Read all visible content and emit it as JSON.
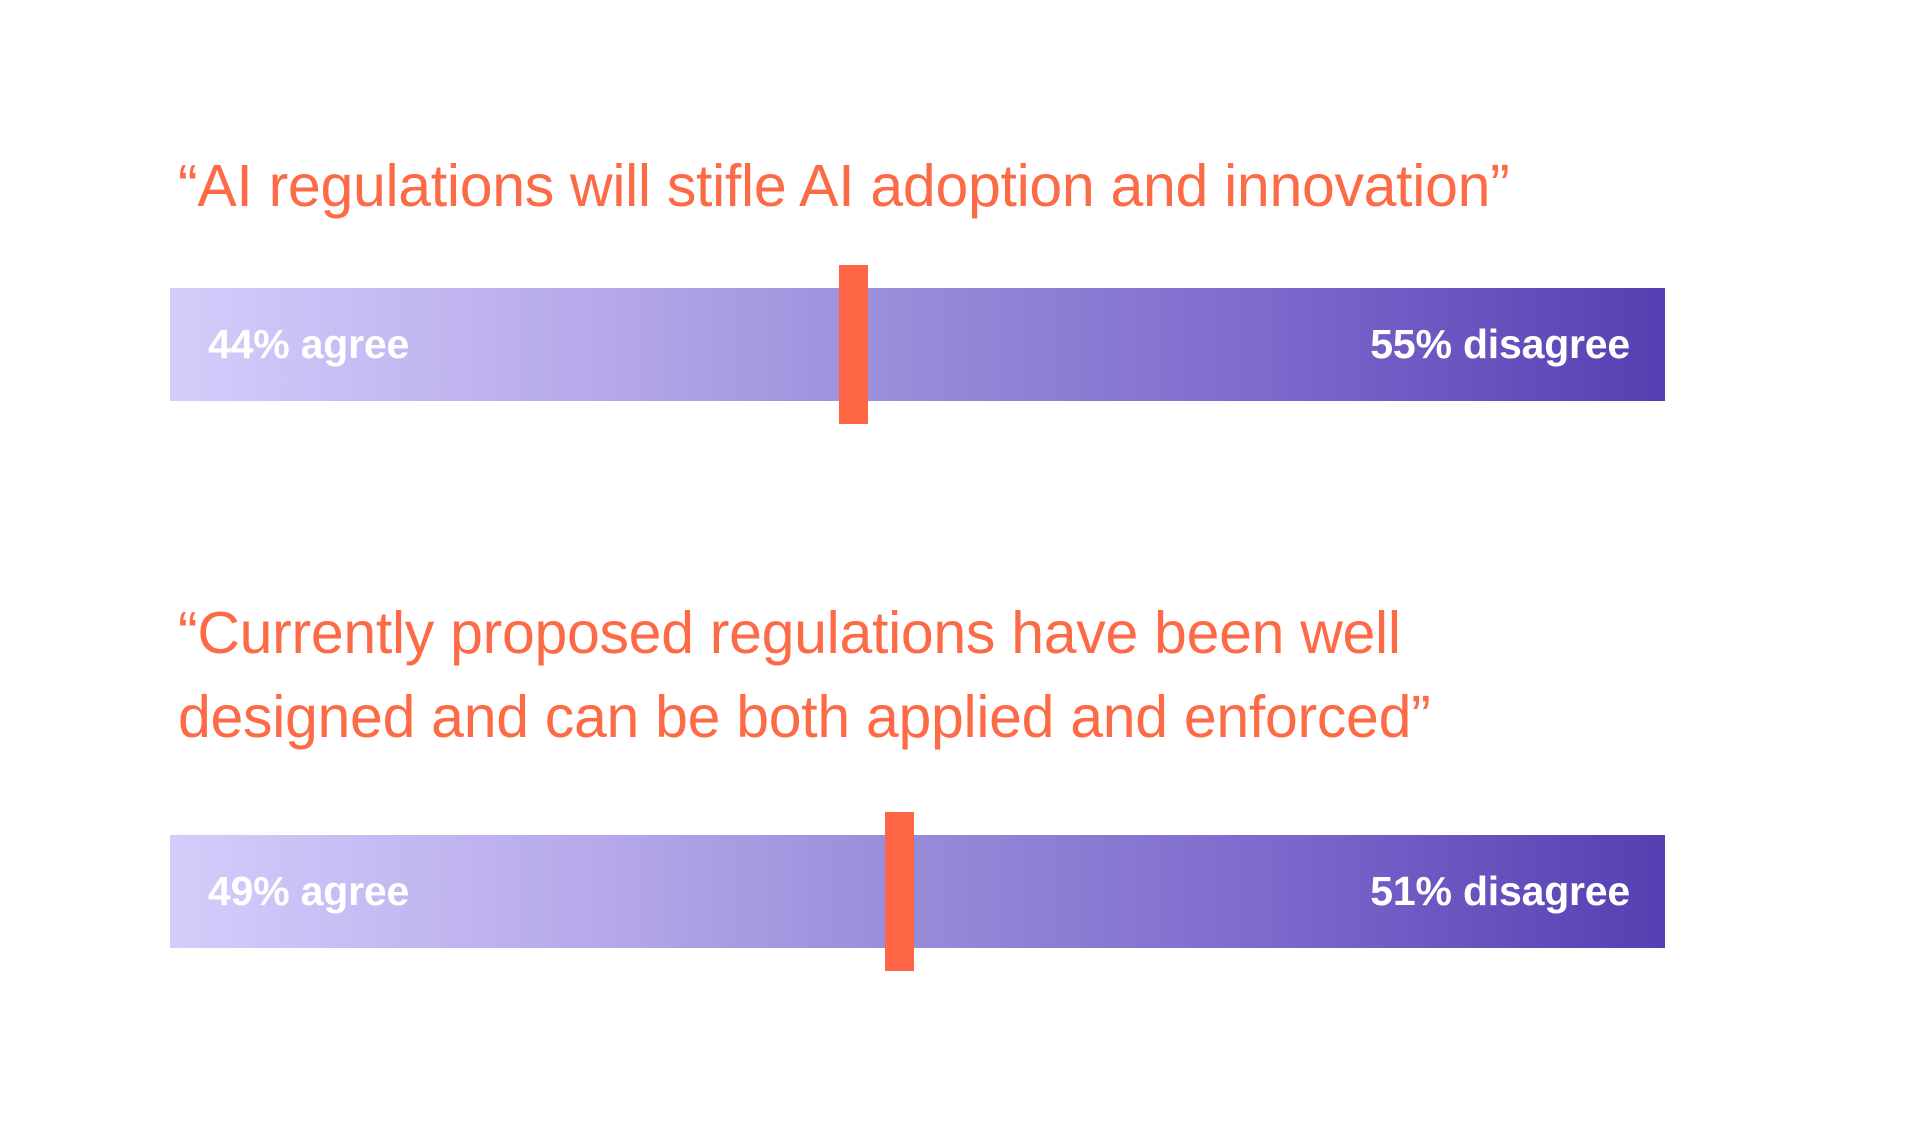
{
  "colors": {
    "statement_text": "#fd6a46",
    "marker": "#fe6545",
    "bar_gradient_start": "#d5ccfb",
    "bar_gradient_end": "#553fb2",
    "label_text": "#ffffff"
  },
  "items": [
    {
      "statement": "“AI regulations will stifle AI adoption and innovation”",
      "agree_label": "44% agree",
      "disagree_label": "55% disagree"
    },
    {
      "statement_line1": "“Currently proposed regulations have been well",
      "statement_line2": "designed and can be both applied and enforced”",
      "agree_label": "49% agree",
      "disagree_label": "51% disagree"
    }
  ],
  "chart_data": {
    "type": "bar",
    "subtype": "diverging-stacked-100",
    "title": "",
    "categories": [
      "“AI regulations will stifle AI adoption and innovation”",
      "“Currently proposed regulations have been well designed and can be both applied and enforced”"
    ],
    "series": [
      {
        "name": "agree",
        "values": [
          44,
          49
        ],
        "unit": "%"
      },
      {
        "name": "disagree",
        "values": [
          55,
          51
        ],
        "unit": "%"
      }
    ],
    "marker_positions_pct": [
      45.5,
      48.5
    ],
    "xlabel": "",
    "ylabel": "",
    "xlim": [
      0,
      100
    ],
    "grid": false,
    "legend": "none (labels inline in bars)"
  }
}
